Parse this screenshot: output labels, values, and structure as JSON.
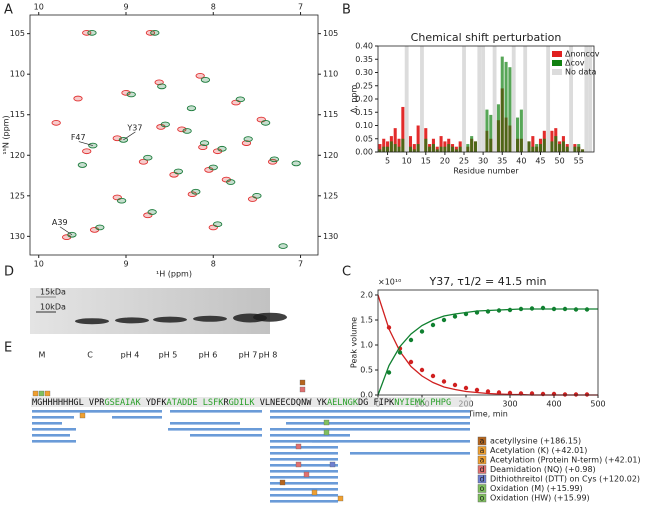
{
  "panel_labels": [
    "A",
    "B",
    "C",
    "D",
    "E"
  ],
  "chart_data": [
    {
      "type": "scatter",
      "marker": "ellipse",
      "xlabel": "¹H (ppm)",
      "ylabel": "¹⁵N (ppm)",
      "xlim": [
        10.1,
        6.8
      ],
      "ylim": [
        132.3,
        102.7
      ],
      "xticks": [
        10,
        9,
        8,
        7
      ],
      "yticks": [
        105,
        110,
        115,
        120,
        125,
        130
      ],
      "series": [
        {
          "color": "#e03030",
          "x": [
            9.45,
            8.72,
            8.62,
            8.15,
            7.74,
            9.0,
            9.45,
            9.1,
            9.68,
            9.36,
            9.1,
            8.6,
            8.36,
            8.12,
            7.95,
            7.62,
            7.32,
            8.05,
            8.45,
            7.85,
            8.24,
            7.55,
            8.75,
            8.0,
            9.55,
            9.8,
            8.8,
            7.45
          ],
          "values": [
            104.9,
            104.9,
            111.0,
            110.2,
            113.5,
            112.3,
            119.5,
            117.9,
            130.1,
            129.2,
            125.2,
            116.5,
            116.8,
            119.0,
            119.5,
            118.5,
            120.8,
            121.8,
            122.4,
            123.0,
            124.8,
            125.4,
            127.4,
            128.9,
            113.0,
            116.0,
            120.8,
            115.6
          ]
        },
        {
          "color": "#1a7a3a",
          "x": [
            9.39,
            8.67,
            8.59,
            8.09,
            7.69,
            8.94,
            9.38,
            9.03,
            9.62,
            9.3,
            9.05,
            8.55,
            8.3,
            8.1,
            7.9,
            7.6,
            7.3,
            8.0,
            8.4,
            7.8,
            8.2,
            7.5,
            8.7,
            7.95,
            7.2,
            9.5,
            8.75,
            7.4,
            8.25,
            7.05
          ],
          "values": [
            104.9,
            104.9,
            111.5,
            110.7,
            113.1,
            112.5,
            118.8,
            118.1,
            129.8,
            128.9,
            125.6,
            116.2,
            117.0,
            118.5,
            119.2,
            118.0,
            120.5,
            121.5,
            122.0,
            123.3,
            124.5,
            125.0,
            127.0,
            128.5,
            131.2,
            121.2,
            120.3,
            116.0,
            114.2,
            121.0
          ]
        }
      ],
      "annotations": [
        {
          "text": "F47",
          "x": 9.38,
          "y": 118.8
        },
        {
          "text": "Y37",
          "x": 9.03,
          "y": 118.1
        },
        {
          "text": "A39",
          "x": 9.62,
          "y": 129.8
        }
      ]
    },
    {
      "type": "bar",
      "title": "Chemical shift perturbation",
      "xlabel": "Residue number",
      "ylabel": "Δ, ppm",
      "xlim": [
        2.5,
        59
      ],
      "ylim": [
        0,
        0.4
      ],
      "xticks": [
        5,
        10,
        15,
        20,
        25,
        30,
        35,
        40,
        45,
        50,
        55
      ],
      "yticks": [
        {
          "value": 0,
          "label": "0.00"
        },
        {
          "value": 0.05,
          "label": "0.05"
        },
        {
          "value": 0.1,
          "label": "0.10"
        },
        {
          "value": 0.15,
          "label": "0.15"
        },
        {
          "value": 0.2,
          "label": "0.20"
        },
        {
          "value": 0.25,
          "label": "0.25"
        },
        {
          "value": 0.3,
          "label": "0.30"
        },
        {
          "value": 0.35,
          "label": "0.35"
        },
        {
          "value": 0.4,
          "label": "0.40"
        }
      ],
      "x": [
        3,
        4,
        5,
        6,
        7,
        8,
        9,
        10,
        11,
        12,
        13,
        14,
        15,
        16,
        17,
        18,
        19,
        20,
        21,
        22,
        23,
        24,
        25,
        26,
        27,
        28,
        29,
        30,
        31,
        32,
        33,
        34,
        35,
        36,
        37,
        38,
        39,
        40,
        41,
        42,
        43,
        44,
        45,
        46,
        47,
        48,
        49,
        50,
        51,
        52,
        53,
        54,
        55,
        56,
        57,
        58
      ],
      "series": [
        {
          "name": "Δnoncov",
          "color": "#e02020",
          "values": [
            0.03,
            0.05,
            0.04,
            0.06,
            0.09,
            0.05,
            0.17,
            null,
            0.06,
            0.03,
            0.1,
            null,
            0.09,
            0.03,
            0.05,
            0.02,
            0.06,
            0.04,
            0.05,
            0.03,
            0.02,
            0.04,
            null,
            0.02,
            0.05,
            0.04,
            null,
            null,
            0.08,
            0.05,
            null,
            0.12,
            0.24,
            0.13,
            0.1,
            null,
            0.05,
            0.05,
            null,
            0.04,
            0.06,
            0.02,
            0.05,
            0.08,
            null,
            0.08,
            0.09,
            0.04,
            0.06,
            0.03,
            null,
            0.03,
            0.02,
            0.01,
            null,
            null
          ]
        },
        {
          "name": "Δcov",
          "color": "#108010",
          "values": [
            0.01,
            0.02,
            0.02,
            0.04,
            0.03,
            0.02,
            0.05,
            null,
            0.02,
            0.01,
            0.03,
            null,
            0.05,
            0.02,
            0.03,
            0.01,
            0.02,
            0.02,
            0.03,
            0.02,
            0.01,
            0.02,
            null,
            0.03,
            0.06,
            0.04,
            null,
            null,
            0.16,
            0.14,
            null,
            0.18,
            0.36,
            0.34,
            0.32,
            null,
            0.13,
            0.16,
            null,
            0.04,
            0.02,
            0.03,
            0.03,
            0.05,
            null,
            0.04,
            0.06,
            0.03,
            0.04,
            0.02,
            null,
            0.02,
            0.03,
            0.01,
            null,
            null
          ]
        }
      ],
      "no_data": [
        10,
        14,
        25,
        29,
        30,
        33,
        38,
        41,
        47,
        53,
        57,
        58
      ],
      "no_data_label": "No data",
      "no_data_color": "#dcdcdc"
    },
    {
      "type": "scatter",
      "marker": "circle",
      "title": "Y37, τ1/2 = 41.5 min",
      "xlabel": "Time, min",
      "ylabel": "Peak volume",
      "y_offset_label": "×10¹⁰",
      "xlim": [
        0,
        500
      ],
      "ylim": [
        0,
        2.1
      ],
      "xticks": [
        0,
        100,
        200,
        300,
        400,
        500
      ],
      "yticks": [
        {
          "value": 0,
          "label": "0.0"
        },
        {
          "value": 0.5,
          "label": "0.5"
        },
        {
          "value": 1,
          "label": "1.0"
        },
        {
          "value": 1.5,
          "label": "1.5"
        },
        {
          "value": 2,
          "label": "2.0"
        }
      ],
      "x": [
        25,
        50,
        75,
        100,
        125,
        150,
        175,
        200,
        225,
        250,
        275,
        300,
        325,
        350,
        375,
        400,
        425,
        450,
        475
      ],
      "fit_x": [
        0,
        25,
        50,
        75,
        100,
        125,
        150,
        175,
        200,
        225,
        250,
        275,
        300,
        325,
        350,
        375,
        400,
        425,
        450,
        475,
        500
      ],
      "series": [
        {
          "color": "#d02020",
          "values": [
            1.35,
            0.93,
            0.66,
            0.5,
            0.38,
            0.27,
            0.2,
            0.14,
            0.1,
            0.07,
            0.05,
            0.04,
            0.03,
            0.03,
            0.02,
            0.02,
            0.01,
            0.01,
            0.01
          ],
          "fit_values": [
            2.0,
            1.32,
            0.87,
            0.57,
            0.38,
            0.25,
            0.16,
            0.11,
            0.07,
            0.05,
            0.03,
            0.02,
            0.01,
            0.01,
            0,
            0,
            0,
            0,
            0,
            0,
            0
          ]
        },
        {
          "color": "#108030",
          "values": [
            0.45,
            0.85,
            1.1,
            1.27,
            1.4,
            1.5,
            1.57,
            1.62,
            1.65,
            1.67,
            1.69,
            1.7,
            1.72,
            1.73,
            1.74,
            1.72,
            1.72,
            1.71,
            1.71
          ],
          "fit_values": [
            0,
            0.59,
            0.97,
            1.22,
            1.39,
            1.5,
            1.58,
            1.62,
            1.65,
            1.68,
            1.69,
            1.7,
            1.71,
            1.72,
            1.72,
            1.72,
            1.72,
            1.72,
            1.72,
            1.72,
            1.72
          ]
        }
      ]
    }
  ],
  "gel": {
    "markers": [
      "15kDa",
      "10kDa"
    ],
    "lanes": [
      "M",
      "C",
      "pH 4",
      "pH 5",
      "pH 6",
      "pH 7",
      "pH 8"
    ]
  },
  "coverage": {
    "sequence": [
      "MGHHHHHHGL VPR",
      "GSEAIAK",
      " YDFK",
      "ATADDE LSFK",
      "R",
      "GDILK",
      " VLNEECDQNW YK",
      "AELNGK",
      "DG FIPK",
      "NYIEMK PHPG"
    ],
    "legend": [
      {
        "letter": "a",
        "label": "acetyllysine (+186.15)",
        "color": "#b5651d"
      },
      {
        "letter": "a",
        "label": "Acetylation (K) (+42.01)",
        "color": "#f0a030"
      },
      {
        "letter": "a",
        "label": "Acetylation (Protein N-term) (+42.01)",
        "color": "#f0a030"
      },
      {
        "letter": "d",
        "label": "Deamidation (NQ) (+0.98)",
        "color": "#e07070"
      },
      {
        "letter": "d",
        "label": "Dithiothreitol (DTT) on Cys (+120.02)",
        "color": "#7080d0"
      },
      {
        "letter": "o",
        "label": "Oxidation (M) (+15.99)",
        "color": "#80c060"
      },
      {
        "letter": "o",
        "label": "Oxidation (HW) (+15.99)",
        "color": "#80c060"
      }
    ]
  }
}
